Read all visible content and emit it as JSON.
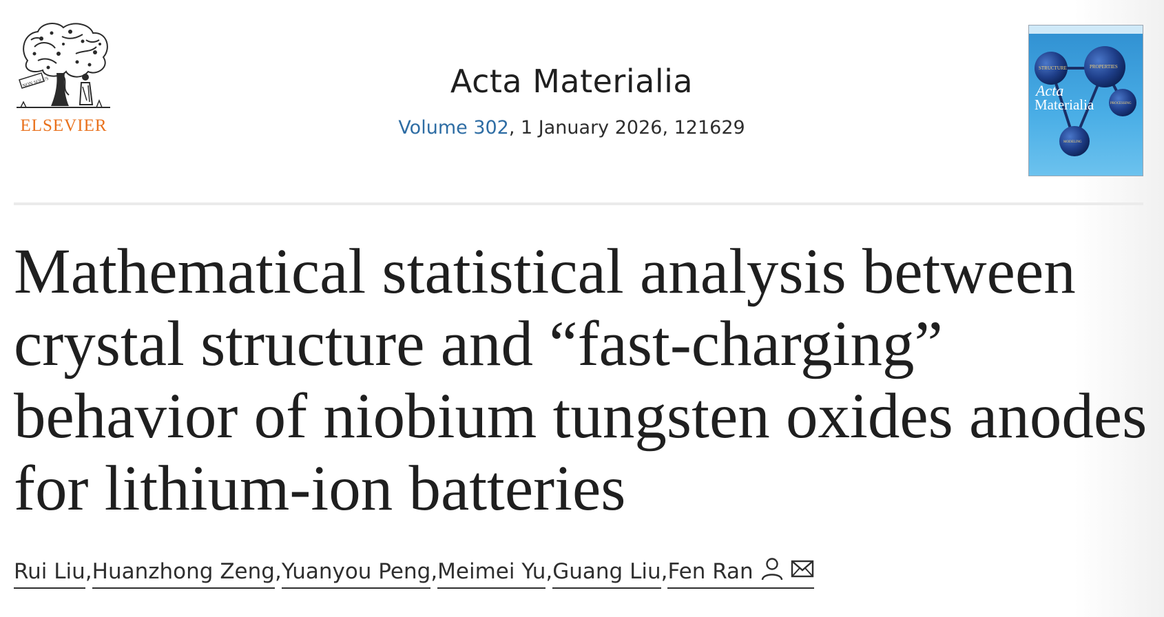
{
  "publisher": {
    "name": "ELSEVIER",
    "logo_motto": "NON SOLUS",
    "accent_color": "#e9711c"
  },
  "journal": {
    "title": "Acta Materialia",
    "volume_link": "Volume 302",
    "issue_info": ", 1 January 2026, 121629",
    "link_color": "#2e6da4"
  },
  "cover": {
    "title_line1": "Acta",
    "title_line2": "Materialia",
    "sphere_labels": [
      "STRUCTURE",
      "PROPERTIES",
      "PROCESSING",
      "MODELING"
    ]
  },
  "article": {
    "title_lines": [
      "Mathematical statistical analysis between",
      "crystal structure and “fast-charging”",
      "behavior of niobium tungsten oxides anodes",
      "for lithium-ion batteries"
    ]
  },
  "authors": [
    "Rui Liu",
    "Huanzhong Zeng",
    "Yuanyou Peng",
    "Meimei Yu",
    "Guang Liu",
    "Fen Ran"
  ],
  "icons": {
    "corresponding_author": "person-icon",
    "email": "envelope-icon"
  }
}
